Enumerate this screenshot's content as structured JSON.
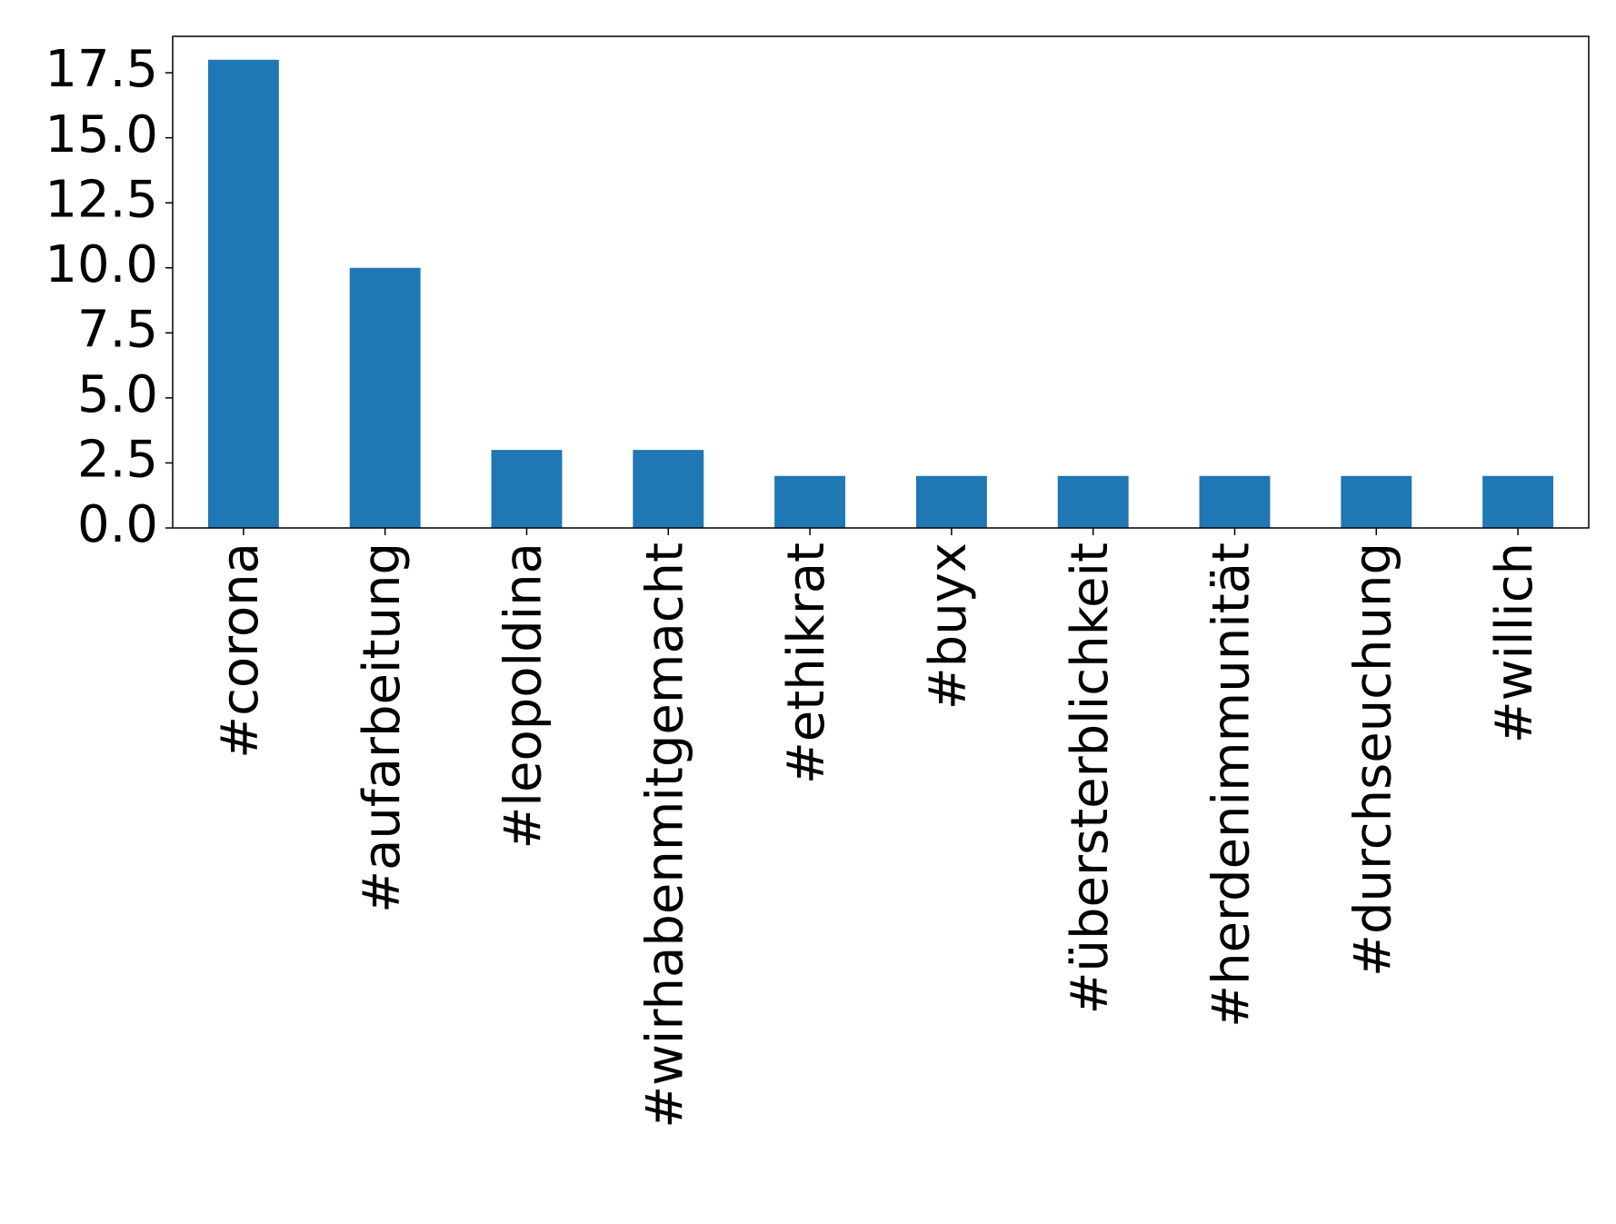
{
  "chart_data": {
    "type": "bar",
    "categories": [
      "#corona",
      "#aufarbeitung",
      "#leopoldina",
      "#wirhabenmitgemacht",
      "#ethikrat",
      "#buyx",
      "#übersterblichkeit",
      "#herdenimmunität",
      "#durchseuchung",
      "#willich"
    ],
    "values": [
      18,
      10,
      3,
      3,
      2,
      2,
      2,
      2,
      2,
      2
    ],
    "color": "#1f77b4",
    "ylim": [
      0,
      18.9
    ],
    "yticks": [
      {
        "value": 0,
        "label": "0.0"
      },
      2.5,
      {
        "value": 5,
        "label": "5.0"
      },
      7.5,
      {
        "value": 10,
        "label": "10.0"
      },
      12.5,
      {
        "value": 15,
        "label": "15.0"
      },
      17.5
    ],
    "grid": false
  }
}
